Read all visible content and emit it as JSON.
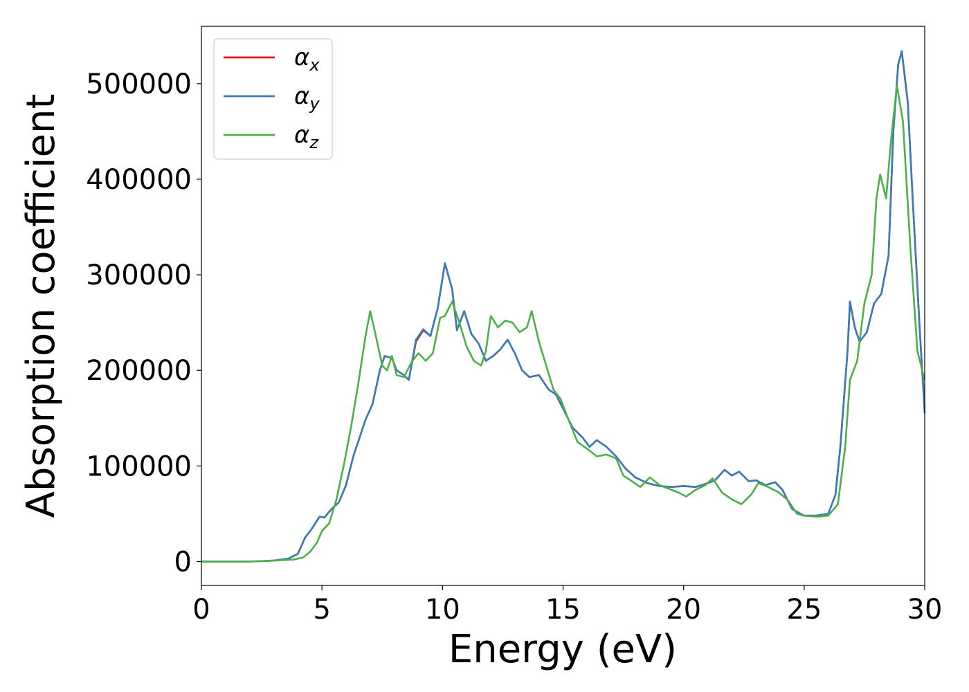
{
  "chart_data": {
    "type": "line",
    "title": "",
    "xlabel": "Energy (eV)",
    "ylabel": "Absorption coefficient",
    "xlim": [
      0,
      30
    ],
    "ylim": [
      -25000,
      560000
    ],
    "xticks": [
      0,
      5,
      10,
      15,
      20,
      25,
      30
    ],
    "xtick_labels": [
      "0",
      "5",
      "10",
      "15",
      "20",
      "25",
      "30"
    ],
    "yticks": [
      0,
      100000,
      200000,
      300000,
      400000,
      500000
    ],
    "ytick_labels": [
      "0",
      "100000",
      "200000",
      "300000",
      "400000",
      "500000"
    ],
    "grid": false,
    "legend_position": "top-left",
    "series": [
      {
        "name": "αx",
        "symbol": "α",
        "subscript": "x",
        "color": "#e41a1c",
        "points": [
          [
            0,
            0
          ],
          [
            2,
            0
          ],
          [
            3,
            1000
          ],
          [
            3.6,
            3000
          ],
          [
            4.0,
            8000
          ],
          [
            4.3,
            25000
          ],
          [
            4.6,
            35000
          ],
          [
            4.9,
            47000
          ],
          [
            5.1,
            46000
          ],
          [
            5.4,
            55000
          ],
          [
            5.7,
            62000
          ],
          [
            6.0,
            80000
          ],
          [
            6.3,
            110000
          ],
          [
            6.5,
            125000
          ],
          [
            6.8,
            148000
          ],
          [
            7.1,
            165000
          ],
          [
            7.4,
            200000
          ],
          [
            7.6,
            215000
          ],
          [
            7.9,
            213000
          ],
          [
            8.1,
            200000
          ],
          [
            8.4,
            195000
          ],
          [
            8.6,
            190000
          ],
          [
            8.9,
            230000
          ],
          [
            9.2,
            242000
          ],
          [
            9.5,
            236000
          ],
          [
            9.8,
            265000
          ],
          [
            10.1,
            312000
          ],
          [
            10.4,
            285000
          ],
          [
            10.6,
            242000
          ],
          [
            10.9,
            262000
          ],
          [
            11.2,
            238000
          ],
          [
            11.5,
            228000
          ],
          [
            11.8,
            210000
          ],
          [
            12.1,
            215000
          ],
          [
            12.4,
            222000
          ],
          [
            12.7,
            232000
          ],
          [
            13.0,
            218000
          ],
          [
            13.3,
            200000
          ],
          [
            13.6,
            193000
          ],
          [
            14.0,
            195000
          ],
          [
            14.4,
            180000
          ],
          [
            14.7,
            175000
          ],
          [
            15.0,
            160000
          ],
          [
            15.4,
            140000
          ],
          [
            15.8,
            130000
          ],
          [
            16.1,
            120000
          ],
          [
            16.4,
            127000
          ],
          [
            16.8,
            120000
          ],
          [
            17.2,
            110000
          ],
          [
            17.6,
            97000
          ],
          [
            18.0,
            88000
          ],
          [
            18.5,
            82000
          ],
          [
            19.0,
            79000
          ],
          [
            19.5,
            78000
          ],
          [
            20.0,
            79000
          ],
          [
            20.5,
            78000
          ],
          [
            21.0,
            82000
          ],
          [
            21.3,
            85000
          ],
          [
            21.7,
            96000
          ],
          [
            22.0,
            90000
          ],
          [
            22.3,
            94000
          ],
          [
            22.7,
            84000
          ],
          [
            23.0,
            85000
          ],
          [
            23.4,
            80000
          ],
          [
            23.8,
            83000
          ],
          [
            24.1,
            75000
          ],
          [
            24.5,
            55000
          ],
          [
            25.0,
            48000
          ],
          [
            25.5,
            48000
          ],
          [
            26.0,
            50000
          ],
          [
            26.3,
            70000
          ],
          [
            26.5,
            120000
          ],
          [
            26.8,
            220000
          ],
          [
            26.9,
            272000
          ],
          [
            27.1,
            245000
          ],
          [
            27.3,
            230000
          ],
          [
            27.6,
            240000
          ],
          [
            27.9,
            270000
          ],
          [
            28.2,
            280000
          ],
          [
            28.5,
            320000
          ],
          [
            28.7,
            450000
          ],
          [
            28.9,
            520000
          ],
          [
            29.05,
            534000
          ],
          [
            29.3,
            480000
          ],
          [
            29.5,
            380000
          ],
          [
            29.8,
            240000
          ],
          [
            30,
            160000
          ]
        ]
      },
      {
        "name": "αy",
        "symbol": "α",
        "subscript": "y",
        "color": "#377eb8",
        "points": [
          [
            0,
            0
          ],
          [
            2,
            0
          ],
          [
            3,
            1000
          ],
          [
            3.6,
            3000
          ],
          [
            4.0,
            8000
          ],
          [
            4.3,
            25000
          ],
          [
            4.6,
            35000
          ],
          [
            4.9,
            47000
          ],
          [
            5.1,
            46000
          ],
          [
            5.4,
            55000
          ],
          [
            5.7,
            62000
          ],
          [
            6.0,
            80000
          ],
          [
            6.3,
            110000
          ],
          [
            6.5,
            125000
          ],
          [
            6.8,
            148000
          ],
          [
            7.1,
            165000
          ],
          [
            7.4,
            200000
          ],
          [
            7.6,
            215000
          ],
          [
            7.9,
            213000
          ],
          [
            8.1,
            200000
          ],
          [
            8.4,
            195000
          ],
          [
            8.6,
            190000
          ],
          [
            8.9,
            232000
          ],
          [
            9.2,
            243000
          ],
          [
            9.5,
            236000
          ],
          [
            9.8,
            265000
          ],
          [
            10.1,
            312000
          ],
          [
            10.4,
            285000
          ],
          [
            10.6,
            242000
          ],
          [
            10.9,
            262000
          ],
          [
            11.2,
            238000
          ],
          [
            11.5,
            228000
          ],
          [
            11.8,
            210000
          ],
          [
            12.1,
            215000
          ],
          [
            12.4,
            222000
          ],
          [
            12.7,
            232000
          ],
          [
            13.0,
            218000
          ],
          [
            13.3,
            200000
          ],
          [
            13.6,
            193000
          ],
          [
            14.0,
            195000
          ],
          [
            14.4,
            180000
          ],
          [
            14.7,
            175000
          ],
          [
            15.0,
            160000
          ],
          [
            15.4,
            140000
          ],
          [
            15.8,
            130000
          ],
          [
            16.1,
            120000
          ],
          [
            16.4,
            127000
          ],
          [
            16.8,
            120000
          ],
          [
            17.2,
            110000
          ],
          [
            17.6,
            97000
          ],
          [
            18.0,
            88000
          ],
          [
            18.5,
            82000
          ],
          [
            19.0,
            79000
          ],
          [
            19.5,
            78000
          ],
          [
            20.0,
            79000
          ],
          [
            20.5,
            78000
          ],
          [
            21.0,
            82000
          ],
          [
            21.3,
            85000
          ],
          [
            21.7,
            96000
          ],
          [
            22.0,
            90000
          ],
          [
            22.3,
            94000
          ],
          [
            22.7,
            84000
          ],
          [
            23.0,
            85000
          ],
          [
            23.4,
            80000
          ],
          [
            23.8,
            83000
          ],
          [
            24.1,
            75000
          ],
          [
            24.5,
            55000
          ],
          [
            25.0,
            48000
          ],
          [
            25.5,
            48000
          ],
          [
            26.0,
            50000
          ],
          [
            26.3,
            70000
          ],
          [
            26.5,
            120000
          ],
          [
            26.8,
            220000
          ],
          [
            26.9,
            272000
          ],
          [
            27.1,
            245000
          ],
          [
            27.3,
            230000
          ],
          [
            27.6,
            240000
          ],
          [
            27.9,
            270000
          ],
          [
            28.2,
            280000
          ],
          [
            28.5,
            320000
          ],
          [
            28.7,
            450000
          ],
          [
            28.9,
            520000
          ],
          [
            29.05,
            534000
          ],
          [
            29.3,
            480000
          ],
          [
            29.5,
            380000
          ],
          [
            29.8,
            240000
          ],
          [
            30,
            155000
          ]
        ]
      },
      {
        "name": "αz",
        "symbol": "α",
        "subscript": "z",
        "color": "#4daf4a",
        "points": [
          [
            0,
            0
          ],
          [
            2,
            0
          ],
          [
            3,
            1000
          ],
          [
            3.8,
            2000
          ],
          [
            4.2,
            4000
          ],
          [
            4.5,
            10000
          ],
          [
            4.8,
            20000
          ],
          [
            5.0,
            32000
          ],
          [
            5.3,
            40000
          ],
          [
            5.6,
            65000
          ],
          [
            5.9,
            100000
          ],
          [
            6.2,
            140000
          ],
          [
            6.5,
            185000
          ],
          [
            6.8,
            235000
          ],
          [
            7.0,
            262000
          ],
          [
            7.2,
            240000
          ],
          [
            7.5,
            205000
          ],
          [
            7.7,
            200000
          ],
          [
            7.9,
            215000
          ],
          [
            8.1,
            195000
          ],
          [
            8.4,
            193000
          ],
          [
            8.7,
            208000
          ],
          [
            9.0,
            218000
          ],
          [
            9.3,
            210000
          ],
          [
            9.6,
            218000
          ],
          [
            9.9,
            255000
          ],
          [
            10.1,
            257000
          ],
          [
            10.4,
            272000
          ],
          [
            10.7,
            250000
          ],
          [
            11.0,
            225000
          ],
          [
            11.3,
            210000
          ],
          [
            11.6,
            205000
          ],
          [
            11.8,
            220000
          ],
          [
            12.0,
            257000
          ],
          [
            12.3,
            245000
          ],
          [
            12.6,
            252000
          ],
          [
            12.9,
            250000
          ],
          [
            13.2,
            240000
          ],
          [
            13.5,
            245000
          ],
          [
            13.7,
            262000
          ],
          [
            14.0,
            230000
          ],
          [
            14.3,
            205000
          ],
          [
            14.6,
            180000
          ],
          [
            14.9,
            170000
          ],
          [
            15.2,
            150000
          ],
          [
            15.6,
            125000
          ],
          [
            16.0,
            118000
          ],
          [
            16.4,
            110000
          ],
          [
            16.8,
            112000
          ],
          [
            17.2,
            108000
          ],
          [
            17.5,
            90000
          ],
          [
            17.8,
            85000
          ],
          [
            18.2,
            78000
          ],
          [
            18.6,
            88000
          ],
          [
            19.0,
            80000
          ],
          [
            19.4,
            76000
          ],
          [
            19.8,
            72000
          ],
          [
            20.1,
            68000
          ],
          [
            20.5,
            75000
          ],
          [
            20.9,
            80000
          ],
          [
            21.2,
            87000
          ],
          [
            21.6,
            72000
          ],
          [
            22.0,
            65000
          ],
          [
            22.4,
            60000
          ],
          [
            22.8,
            70000
          ],
          [
            23.1,
            82000
          ],
          [
            23.5,
            78000
          ],
          [
            23.9,
            73000
          ],
          [
            24.3,
            65000
          ],
          [
            24.7,
            50000
          ],
          [
            25.0,
            48000
          ],
          [
            25.5,
            47000
          ],
          [
            26.0,
            48000
          ],
          [
            26.4,
            60000
          ],
          [
            26.7,
            120000
          ],
          [
            26.9,
            190000
          ],
          [
            27.2,
            210000
          ],
          [
            27.5,
            270000
          ],
          [
            27.8,
            300000
          ],
          [
            28.0,
            380000
          ],
          [
            28.15,
            405000
          ],
          [
            28.4,
            380000
          ],
          [
            28.6,
            440000
          ],
          [
            28.85,
            498000
          ],
          [
            29.1,
            460000
          ],
          [
            29.4,
            330000
          ],
          [
            29.7,
            220000
          ],
          [
            30,
            190000
          ]
        ]
      }
    ]
  }
}
